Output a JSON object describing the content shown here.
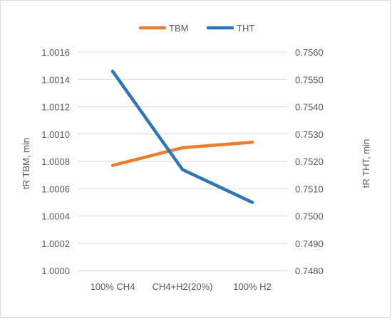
{
  "chart_data": {
    "type": "line",
    "categories": [
      "100% CH4",
      "CH4+H2(20%)",
      "100% H2"
    ],
    "series": [
      {
        "name": "TBM",
        "axis": "left",
        "color": "#ED7D31",
        "values": [
          1.00077,
          1.0009,
          1.00094
        ]
      },
      {
        "name": "THT",
        "axis": "right",
        "color": "#2E75B6",
        "values": [
          0.7553,
          0.7517,
          0.7505
        ]
      }
    ],
    "ylabel": "tR TBM, min",
    "ylabel_right": "tR THT, min",
    "ylim": [
      1.0,
      1.0016
    ],
    "ylim_right": [
      0.748,
      0.756
    ],
    "yticks": [
      "1.0000",
      "1.0002",
      "1.0004",
      "1.0006",
      "1.0008",
      "1.0010",
      "1.0012",
      "1.0014",
      "1.0016"
    ],
    "yticks_right": [
      "0.7480",
      "0.7490",
      "0.7500",
      "0.7510",
      "0.7520",
      "0.7530",
      "0.7540",
      "0.7550",
      "0.7560"
    ],
    "grid": true,
    "legend_position": "top",
    "gridline_color": "#d9d9d9"
  }
}
